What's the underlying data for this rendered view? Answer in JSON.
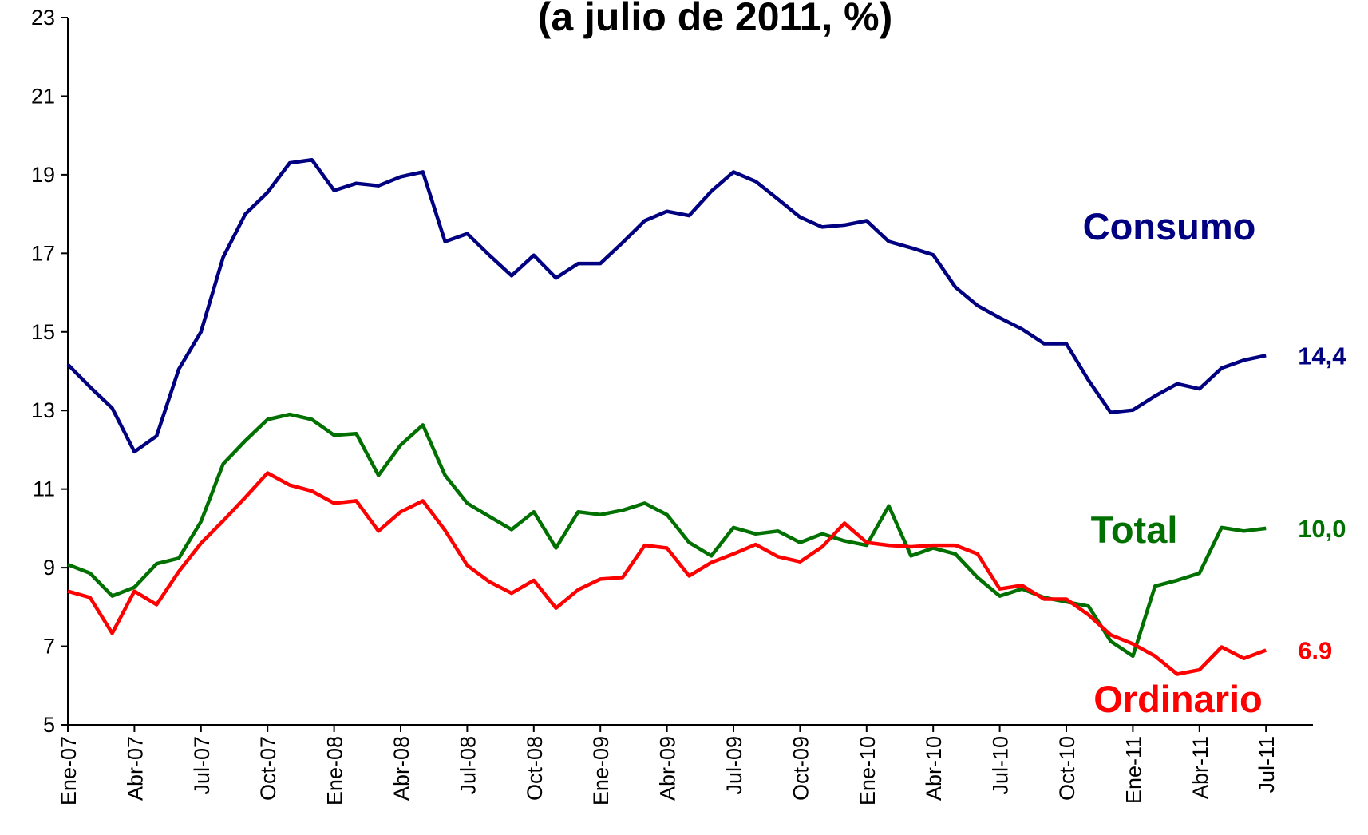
{
  "chart_data": {
    "type": "line",
    "title": "(a julio de 2011, %)",
    "categories": [
      "Ene-07",
      null,
      null,
      "Abr-07",
      null,
      null,
      "Jul-07",
      null,
      null,
      "Oct-07",
      null,
      null,
      "Ene-08",
      null,
      null,
      "Abr-08",
      null,
      null,
      "Jul-08",
      null,
      null,
      "Oct-08",
      null,
      null,
      "Ene-09",
      null,
      null,
      "Abr-09",
      null,
      null,
      "Jul-09",
      null,
      null,
      "Oct-09",
      null,
      null,
      "Ene-10",
      null,
      null,
      "Abr-10",
      null,
      null,
      "Jul-10",
      null,
      null,
      "Oct-10",
      null,
      null,
      "Ene-11",
      null,
      null,
      "Abr-11",
      null,
      null,
      "Jul-11"
    ],
    "ylim": [
      5,
      23
    ],
    "yticks": [
      5,
      7,
      9,
      11,
      13,
      15,
      17,
      19,
      21,
      23
    ],
    "series": [
      {
        "name": "Consumo",
        "color": "#000080",
        "values": [
          14.17,
          13.6,
          13.06,
          11.95,
          12.35,
          14.05,
          15.0,
          16.9,
          18.0,
          18.55,
          19.3,
          19.38,
          18.6,
          18.78,
          18.72,
          18.95,
          19.07,
          17.3,
          17.5,
          16.95,
          16.43,
          16.95,
          16.37,
          16.74,
          16.74,
          17.27,
          17.83,
          18.07,
          17.96,
          18.58,
          19.07,
          18.83,
          18.38,
          17.92,
          17.67,
          17.72,
          17.83,
          17.3,
          17.14,
          16.96,
          16.14,
          15.67,
          15.36,
          15.07,
          14.7,
          14.7,
          13.77,
          12.95,
          13.01,
          13.37,
          13.68,
          13.55,
          14.08,
          14.28,
          14.4
        ],
        "value_labels": [
          null,
          null,
          null,
          null,
          null,
          null,
          null,
          null,
          null,
          null,
          null,
          null,
          null,
          null,
          null,
          null,
          null,
          null,
          null,
          null,
          null,
          null,
          null,
          null,
          null,
          null,
          null,
          null,
          null,
          null,
          null,
          null,
          null,
          null,
          null,
          null,
          null,
          null,
          null,
          null,
          null,
          null,
          null,
          null,
          null,
          null,
          null,
          null,
          null,
          null,
          null,
          null,
          null,
          null,
          "14,4"
        ]
      },
      {
        "name": "Total",
        "color": "#007000",
        "values": [
          9.08,
          8.86,
          8.28,
          8.5,
          9.1,
          9.24,
          10.17,
          11.64,
          12.23,
          12.77,
          12.9,
          12.77,
          12.37,
          12.41,
          11.35,
          12.12,
          12.63,
          11.35,
          10.64,
          10.3,
          9.97,
          10.42,
          9.5,
          10.42,
          10.35,
          10.46,
          10.64,
          10.35,
          9.64,
          9.3,
          10.02,
          9.86,
          9.93,
          9.64,
          9.86,
          9.68,
          9.57,
          10.57,
          9.3,
          9.5,
          9.35,
          8.75,
          8.28,
          8.46,
          8.24,
          8.13,
          8.02,
          7.13,
          6.75,
          8.53,
          8.68,
          8.86,
          10.02,
          9.93,
          10.0
        ],
        "value_labels": [
          null,
          null,
          null,
          null,
          null,
          null,
          null,
          null,
          null,
          null,
          null,
          null,
          null,
          null,
          null,
          null,
          null,
          null,
          null,
          null,
          null,
          null,
          null,
          null,
          null,
          null,
          null,
          null,
          null,
          null,
          null,
          null,
          null,
          null,
          null,
          null,
          null,
          null,
          null,
          null,
          null,
          null,
          null,
          null,
          null,
          null,
          null,
          null,
          null,
          null,
          null,
          null,
          null,
          null,
          "10,0"
        ]
      },
      {
        "name": "Ordinario",
        "color": "#ff0000",
        "values": [
          8.4,
          8.24,
          7.33,
          8.4,
          8.06,
          8.9,
          9.62,
          10.19,
          10.79,
          11.41,
          11.1,
          10.95,
          10.64,
          10.7,
          9.93,
          10.42,
          10.7,
          9.95,
          9.06,
          8.64,
          8.35,
          8.68,
          7.97,
          8.44,
          8.71,
          8.75,
          9.57,
          9.5,
          8.79,
          9.13,
          9.35,
          9.59,
          9.28,
          9.15,
          9.53,
          10.13,
          9.64,
          9.57,
          9.53,
          9.57,
          9.57,
          9.35,
          8.46,
          8.55,
          8.2,
          8.2,
          7.8,
          7.29,
          7.06,
          6.75,
          6.29,
          6.4,
          6.98,
          6.69,
          6.9
        ],
        "value_labels": [
          null,
          null,
          null,
          null,
          null,
          null,
          null,
          null,
          null,
          null,
          null,
          null,
          null,
          null,
          null,
          null,
          null,
          null,
          null,
          null,
          null,
          null,
          null,
          null,
          null,
          null,
          null,
          null,
          null,
          null,
          null,
          null,
          null,
          null,
          null,
          null,
          null,
          null,
          null,
          null,
          null,
          null,
          null,
          null,
          null,
          null,
          null,
          null,
          null,
          null,
          null,
          null,
          null,
          null,
          "6.9"
        ]
      }
    ]
  }
}
